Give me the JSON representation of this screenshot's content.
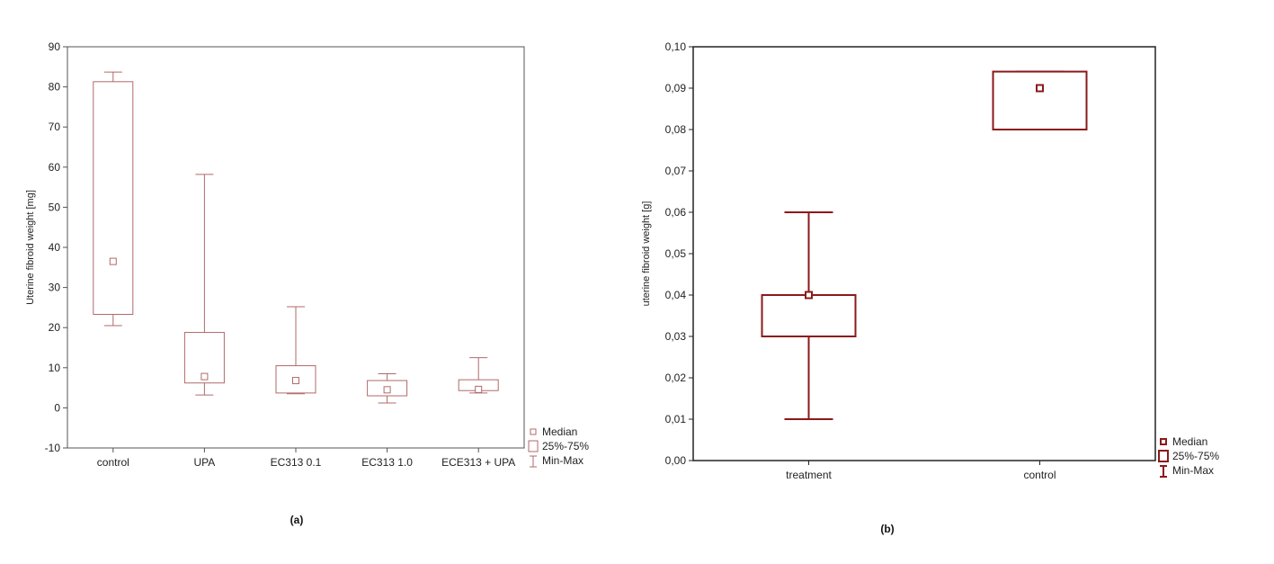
{
  "chart_data": [
    {
      "type": "box",
      "panel_label": "(a)",
      "ylabel": "Uterine fibroid weight [mg]",
      "ylim": [
        -10,
        90
      ],
      "yticks": [
        "-10",
        "0",
        "10",
        "20",
        "30",
        "40",
        "50",
        "60",
        "70",
        "80",
        "90"
      ],
      "categories": [
        "control",
        "UPA",
        "EC313 0.1",
        "EC313 1.0",
        "ECE313 + UPA"
      ],
      "series": [
        {
          "category": "control",
          "min": 20.5,
          "q1": 23.3,
          "median": 36.5,
          "q3": 81.3,
          "max": 83.7
        },
        {
          "category": "UPA",
          "min": 3.2,
          "q1": 6.2,
          "median": 7.8,
          "q3": 18.8,
          "max": 58.2
        },
        {
          "category": "EC313 0.1",
          "min": 3.5,
          "q1": 3.7,
          "median": 6.8,
          "q3": 10.5,
          "max": 25.2
        },
        {
          "category": "EC313 1.0",
          "min": 1.2,
          "q1": 3.0,
          "median": 4.5,
          "q3": 6.8,
          "max": 8.5
        },
        {
          "category": "ECE313 + UPA",
          "min": 3.7,
          "q1": 4.3,
          "median": 4.6,
          "q3": 7.0,
          "max": 12.5
        }
      ],
      "legend": [
        "Median",
        "25%-75%",
        "Min-Max"
      ],
      "legend_position": "bottom-right outside",
      "grid": false,
      "color": "#b06a6a"
    },
    {
      "type": "box",
      "panel_label": "(b)",
      "ylabel": "uterine fibroid weight [g]",
      "ylim": [
        0,
        0.1
      ],
      "yticks": [
        "0,00",
        "0,01",
        "0,02",
        "0,03",
        "0,04",
        "0,05",
        "0,06",
        "0,07",
        "0,08",
        "0,09",
        "0,10"
      ],
      "categories": [
        "treatment",
        "control"
      ],
      "series": [
        {
          "category": "treatment",
          "min": 0.01,
          "q1": 0.03,
          "median": 0.04,
          "q3": 0.04,
          "max": 0.06
        },
        {
          "category": "control",
          "min": 0.08,
          "q1": 0.08,
          "median": 0.09,
          "q3": 0.094,
          "max": 0.094
        }
      ],
      "legend": [
        "Median",
        "25%-75%",
        "Min-Max"
      ],
      "legend_position": "bottom-right outside",
      "grid": false,
      "color": "#8b1a1a"
    }
  ]
}
